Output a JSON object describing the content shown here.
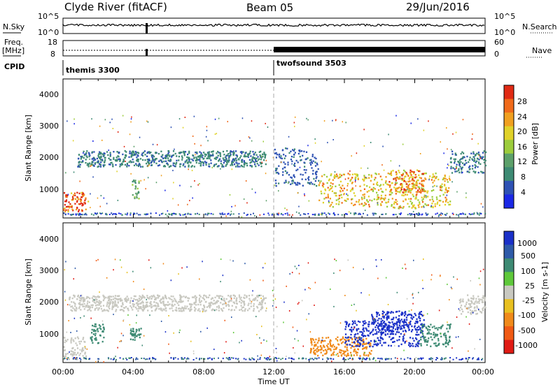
{
  "header": {
    "station": "Clyde River (fitACF)",
    "beam": "Beam 05",
    "date": "29/Jun/2016"
  },
  "top_panels": {
    "nsky_label": "N.Sky",
    "nsky_ticks": [
      "10^5",
      "10^0"
    ],
    "nsearch_label": "N.Search",
    "nsearch_ticks": [
      "10^5",
      "10^0"
    ],
    "freq_label_1": "Freq.",
    "freq_label_2": "[MHz]",
    "freq_ticks": [
      "18",
      "8"
    ],
    "nave_label": "Nave",
    "nave_ticks": [
      "60",
      "0"
    ],
    "cpid_label": "CPID",
    "cpid_modes": [
      {
        "name": "themis 3300",
        "start_hour": 0
      },
      {
        "name": "twofsound 3503",
        "start_hour": 12
      }
    ]
  },
  "x_axis": {
    "label": "Time UT",
    "ticks": [
      "00:00",
      "04:00",
      "08:00",
      "12:00",
      "16:00",
      "20:00",
      "00:00"
    ],
    "range_hours": [
      0,
      24
    ]
  },
  "power_panel": {
    "ylabel": "Slant Range [km]",
    "yticks": [
      "1000",
      "2000",
      "3000",
      "4000"
    ],
    "colorbar_label": "Power [dB]",
    "colorbar_ticks": [
      "4",
      "8",
      "12",
      "16",
      "20",
      "24",
      "28"
    ],
    "colors": [
      "#1a28e6",
      "#2e52b4",
      "#3d8a73",
      "#5ca06a",
      "#9ccc3c",
      "#e0d22a",
      "#f0a020",
      "#f06a1a",
      "#e02a14"
    ]
  },
  "velocity_panel": {
    "ylabel": "Slant Range [km]",
    "yticks": [
      "1000",
      "2000",
      "3000",
      "4000"
    ],
    "colorbar_label": "Velocity [m s-1]",
    "colorbar_ticks": [
      "1000",
      "500",
      "100",
      "25",
      "-25",
      "-100",
      "-500",
      "-1000"
    ],
    "colors": [
      "#1a30c8",
      "#2e5aa8",
      "#3d8a73",
      "#5ec83a",
      "#c8c8c0",
      "#e8c020",
      "#f08a1a",
      "#f05a14",
      "#e01a14"
    ]
  },
  "chart_data": [
    {
      "type": "heatmap",
      "title": "Power",
      "xlabel": "Time UT",
      "ylabel": "Slant Range [km]",
      "xlim": [
        0,
        24
      ],
      "ylim": [
        200,
        4500
      ],
      "regions": [
        {
          "t0": 0.8,
          "t1": 11.5,
          "r0": 1800,
          "r1": 2300,
          "level": 8
        },
        {
          "t0": 0.0,
          "t1": 1.4,
          "r0": 400,
          "r1": 1000,
          "level": 28
        },
        {
          "t0": 3.9,
          "t1": 4.3,
          "r0": 800,
          "r1": 1400,
          "level": 12
        },
        {
          "t0": 14.5,
          "t1": 22.0,
          "r0": 500,
          "r1": 1600,
          "level": 20
        },
        {
          "t0": 18.5,
          "t1": 20.5,
          "r0": 1000,
          "r1": 1700,
          "level": 24
        },
        {
          "t0": 22.0,
          "t1": 24.0,
          "r0": 1600,
          "r1": 2300,
          "level": 8
        },
        {
          "t0": 12.0,
          "t1": 14.5,
          "r0": 1200,
          "r1": 2400,
          "level": 6
        }
      ]
    },
    {
      "type": "heatmap",
      "title": "Velocity",
      "xlabel": "Time UT",
      "ylabel": "Slant Range [km]",
      "xlim": [
        0,
        24
      ],
      "ylim": [
        200,
        4500
      ],
      "regions": [
        {
          "t0": 0.3,
          "t1": 11.5,
          "r0": 1800,
          "r1": 2300,
          "level": 10
        },
        {
          "t0": 0.0,
          "t1": 1.3,
          "r0": 300,
          "r1": 1000,
          "level": 10
        },
        {
          "t0": 1.5,
          "t1": 2.3,
          "r0": 800,
          "r1": 1400,
          "level": 200
        },
        {
          "t0": 3.8,
          "t1": 4.4,
          "r0": 900,
          "r1": 1300,
          "level": 200
        },
        {
          "t0": 14.0,
          "t1": 17.5,
          "r0": 400,
          "r1": 1000,
          "level": -300
        },
        {
          "t0": 16.0,
          "t1": 20.5,
          "r0": 700,
          "r1": 1500,
          "level": 700
        },
        {
          "t0": 17.5,
          "t1": 20.5,
          "r0": 1200,
          "r1": 1800,
          "level": 900
        },
        {
          "t0": 20.3,
          "t1": 22.0,
          "r0": 700,
          "r1": 1400,
          "level": 300
        },
        {
          "t0": 22.5,
          "t1": 24.0,
          "r0": 1700,
          "r1": 2300,
          "level": 10
        }
      ]
    }
  ]
}
